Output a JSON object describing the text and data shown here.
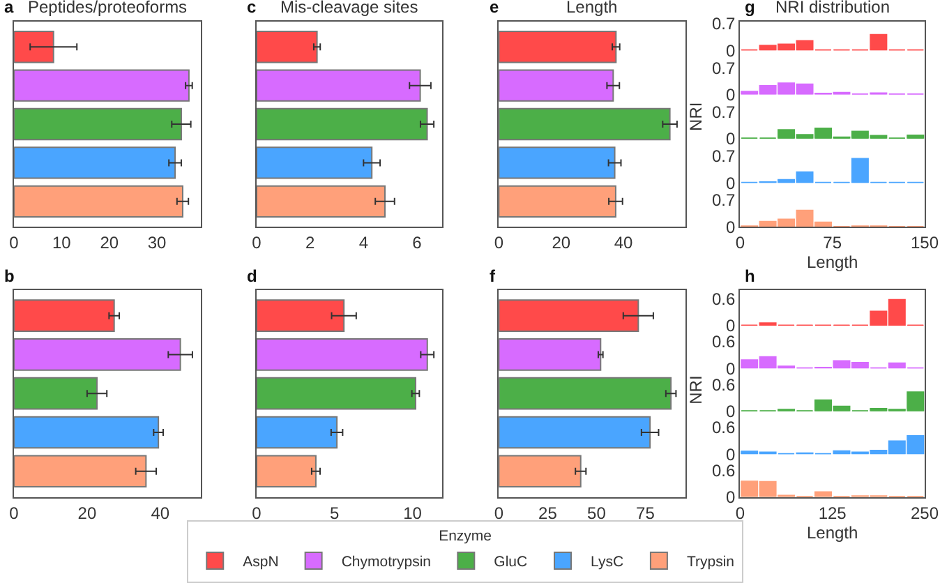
{
  "chart_data": [
    {
      "type": "bar",
      "orientation": "horizontal",
      "title": "Peptides/proteoforms",
      "annotations": [
        "a"
      ],
      "legend": "bottom",
      "legend_title": "Enzyme",
      "categories": [
        null,
        null,
        null,
        null,
        null
      ],
      "xlim": [
        0,
        39.2
      ],
      "xticks": [
        0,
        10,
        20,
        30
      ],
      "series": [
        {
          "name": "AspN",
          "color": "#ff4a4a",
          "values": [
            8.3,
            null,
            null,
            null,
            null
          ],
          "errors": [
            4.9,
            null,
            null,
            null,
            null
          ]
        },
        {
          "name": "Chymotrypsin",
          "color": "#d76bff",
          "values": [
            null,
            36.7,
            null,
            null,
            null
          ],
          "errors": [
            null,
            0.7,
            null,
            null,
            null
          ]
        },
        {
          "name": "GluC",
          "color": "#4caf48",
          "values": [
            null,
            null,
            35.1,
            null,
            null
          ],
          "errors": [
            null,
            null,
            2,
            null,
            null
          ]
        },
        {
          "name": "LysC",
          "color": "#4aa5ff",
          "values": [
            null,
            null,
            null,
            33.8,
            null
          ],
          "errors": [
            null,
            null,
            null,
            1.3,
            null
          ]
        },
        {
          "name": "Trypsin",
          "color": "#ffa07a",
          "values": [
            null,
            null,
            null,
            null,
            35.4
          ],
          "errors": [
            null,
            null,
            null,
            null,
            1.2
          ]
        }
      ]
    },
    {
      "type": "bar",
      "orientation": "horizontal",
      "title": "Mis-cleavage sites",
      "annotations": [
        "c"
      ],
      "categories": [
        null,
        null,
        null,
        null,
        null
      ],
      "xlim": [
        0,
        6.94
      ],
      "xticks": [
        0,
        2,
        4,
        6
      ],
      "series": [
        {
          "color": "#ff4a4a",
          "values": [
            2.26,
            null,
            null,
            null,
            null
          ],
          "errors": [
            0.12,
            null,
            null,
            null,
            null
          ]
        },
        {
          "color": "#d76bff",
          "values": [
            null,
            6.12,
            null,
            null,
            null
          ],
          "errors": [
            null,
            0.4,
            null,
            null,
            null
          ]
        },
        {
          "color": "#4caf48",
          "values": [
            null,
            null,
            6.38,
            null,
            null
          ],
          "errors": [
            null,
            null,
            0.25,
            null,
            null
          ]
        },
        {
          "color": "#4aa5ff",
          "values": [
            null,
            null,
            null,
            4.31,
            null
          ],
          "errors": [
            null,
            null,
            null,
            0.31,
            null
          ]
        },
        {
          "color": "#ffa07a",
          "values": [
            null,
            null,
            null,
            null,
            4.8
          ],
          "errors": [
            null,
            null,
            null,
            null,
            0.36
          ]
        }
      ]
    },
    {
      "type": "bar",
      "orientation": "horizontal",
      "title": "Length",
      "annotations": [
        "e"
      ],
      "categories": [
        null,
        null,
        null,
        null,
        null
      ],
      "xlim": [
        0,
        60
      ],
      "xticks": [
        0,
        20,
        40
      ],
      "series": [
        {
          "color": "#ff4a4a",
          "values": [
            37.6,
            null,
            null,
            null,
            null
          ],
          "errors": [
            1.2,
            null,
            null,
            null,
            null
          ]
        },
        {
          "color": "#d76bff",
          "values": [
            null,
            36.7,
            null,
            null,
            null
          ],
          "errors": [
            null,
            2,
            null,
            null,
            null
          ]
        },
        {
          "color": "#4caf48",
          "values": [
            null,
            null,
            54.9,
            null,
            null
          ],
          "errors": [
            null,
            null,
            2.3,
            null,
            null
          ]
        },
        {
          "color": "#4aa5ff",
          "values": [
            null,
            null,
            null,
            37.2,
            null
          ],
          "errors": [
            null,
            null,
            null,
            2,
            null
          ]
        },
        {
          "color": "#ffa07a",
          "values": [
            null,
            null,
            null,
            null,
            37.5
          ],
          "errors": [
            null,
            null,
            null,
            null,
            2.2
          ]
        }
      ]
    },
    {
      "type": "histogram",
      "title": "NRI distribution",
      "annotations": [
        "g"
      ],
      "tick_labels": "y",
      "bins": [
        0,
        15,
        30,
        45,
        60,
        75,
        90,
        105,
        120,
        135,
        150
      ],
      "xlim": [
        0,
        150
      ],
      "ylim": [
        0,
        0.76
      ],
      "yticks": [
        0,
        0.7
      ],
      "series": [
        {
          "color": "#ff4a4a",
          "values": [
            0,
            0.13,
            0.16,
            0.25,
            0,
            0,
            0,
            0.41,
            0,
            0
          ]
        }
      ]
    },
    {
      "type": "histogram",
      "tick_labels": "y",
      "bins": [
        0,
        15,
        30,
        45,
        60,
        75,
        90,
        105,
        120,
        135,
        150
      ],
      "xlim": [
        0,
        150
      ],
      "ylim": [
        0,
        1.155
      ],
      "yticks": [
        0,
        0.7
      ],
      "series": [
        {
          "color": "#d76bff",
          "values": [
            0.08,
            0.23,
            0.3,
            0.27,
            0.03,
            0.05,
            0,
            0.04,
            0,
            0
          ]
        }
      ]
    },
    {
      "type": "histogram",
      "ylabel": "NRI",
      "tick_labels": "y",
      "bins": [
        0,
        15,
        30,
        45,
        60,
        75,
        90,
        105,
        120,
        135,
        150
      ],
      "xlim": [
        0,
        150
      ],
      "ylim": [
        0,
        1.155
      ],
      "yticks": [
        0,
        0.7
      ],
      "series": [
        {
          "color": "#4caf48",
          "values": [
            0,
            0,
            0.23,
            0.1,
            0.27,
            0.04,
            0.19,
            0.08,
            0,
            0.09
          ]
        }
      ]
    },
    {
      "type": "histogram",
      "tick_labels": "y",
      "bins": [
        0,
        15,
        30,
        45,
        60,
        75,
        90,
        105,
        120,
        135,
        150
      ],
      "xlim": [
        0,
        150
      ],
      "ylim": [
        0,
        1.155
      ],
      "yticks": [
        0,
        0.7
      ],
      "series": [
        {
          "color": "#4aa5ff",
          "values": [
            0,
            0.02,
            0.08,
            0.28,
            0,
            0,
            0.63,
            0,
            0,
            0
          ]
        }
      ]
    },
    {
      "type": "histogram",
      "xlabel": "Length",
      "bins": [
        0,
        15,
        30,
        45,
        60,
        75,
        90,
        105,
        120,
        135,
        150
      ],
      "xlim": [
        0,
        150
      ],
      "xticks": [
        0,
        75,
        150
      ],
      "ylim": [
        0,
        1.155
      ],
      "yticks": [
        0,
        0.7
      ],
      "series": [
        {
          "color": "#ffa07a",
          "values": [
            0.02,
            0.14,
            0.2,
            0.43,
            0.12,
            0,
            0.02,
            0.02,
            0,
            0
          ]
        }
      ]
    },
    {
      "type": "bar",
      "orientation": "horizontal",
      "annotations": [
        "b"
      ],
      "categories": [
        null,
        null,
        null,
        null,
        null
      ],
      "xlim": [
        0,
        51.1
      ],
      "xticks": [
        0,
        20,
        40
      ],
      "series": [
        {
          "color": "#ff4a4a",
          "values": [
            27.4,
            null,
            null,
            null,
            null
          ],
          "errors": [
            1.4,
            null,
            null,
            null,
            null
          ]
        },
        {
          "color": "#d76bff",
          "values": [
            null,
            45.5,
            null,
            null,
            null
          ],
          "errors": [
            null,
            3.3,
            null,
            null,
            null
          ]
        },
        {
          "color": "#4caf48",
          "values": [
            null,
            null,
            22.7,
            null,
            null
          ],
          "errors": [
            null,
            null,
            2.7,
            null,
            null
          ]
        },
        {
          "color": "#4aa5ff",
          "values": [
            null,
            null,
            null,
            39.5,
            null
          ],
          "errors": [
            null,
            null,
            null,
            1.3,
            null
          ]
        },
        {
          "color": "#ffa07a",
          "values": [
            null,
            null,
            null,
            null,
            36.1
          ],
          "errors": [
            null,
            null,
            null,
            null,
            2.8
          ]
        }
      ]
    },
    {
      "type": "bar",
      "orientation": "horizontal",
      "annotations": [
        "d"
      ],
      "categories": [
        null,
        null,
        null,
        null,
        null
      ],
      "xlim": [
        0,
        11.9
      ],
      "xticks": [
        0,
        5,
        10
      ],
      "series": [
        {
          "color": "#ff4a4a",
          "values": [
            5.6,
            null,
            null,
            null,
            null
          ],
          "errors": [
            0.79,
            null,
            null,
            null,
            null
          ]
        },
        {
          "color": "#d76bff",
          "values": [
            null,
            10.95,
            null,
            null,
            null
          ],
          "errors": [
            null,
            0.42,
            null,
            null,
            null
          ]
        },
        {
          "color": "#4caf48",
          "values": [
            null,
            null,
            10.2,
            null,
            null
          ],
          "errors": [
            null,
            null,
            0.24,
            null,
            null
          ]
        },
        {
          "color": "#4aa5ff",
          "values": [
            null,
            null,
            null,
            5.15,
            null
          ],
          "errors": [
            null,
            null,
            null,
            0.37,
            null
          ]
        },
        {
          "color": "#ffa07a",
          "values": [
            null,
            null,
            null,
            null,
            3.8
          ],
          "errors": [
            null,
            null,
            null,
            null,
            0.27
          ]
        }
      ]
    },
    {
      "type": "bar",
      "orientation": "horizontal",
      "annotations": [
        "f"
      ],
      "categories": [
        null,
        null,
        null,
        null,
        null
      ],
      "xlim": [
        0,
        95.7
      ],
      "xticks": [
        0,
        25,
        50,
        75
      ],
      "series": [
        {
          "color": "#ff4a4a",
          "values": [
            71.4,
            null,
            null,
            null,
            null
          ],
          "errors": [
            7.7,
            null,
            null,
            null,
            null
          ]
        },
        {
          "color": "#d76bff",
          "values": [
            null,
            52.1,
            null,
            null,
            null
          ],
          "errors": [
            null,
            1.2,
            null,
            null,
            null
          ]
        },
        {
          "color": "#4caf48",
          "values": [
            null,
            null,
            88.1,
            null,
            null
          ],
          "errors": [
            null,
            null,
            2.6,
            null,
            null
          ]
        },
        {
          "color": "#4aa5ff",
          "values": [
            null,
            null,
            null,
            77.4,
            null
          ],
          "errors": [
            null,
            null,
            null,
            4.4,
            null
          ]
        },
        {
          "color": "#ffa07a",
          "values": [
            null,
            null,
            null,
            null,
            41.9
          ],
          "errors": [
            null,
            null,
            null,
            null,
            2.7
          ]
        }
      ]
    },
    {
      "type": "histogram",
      "annotations": [
        "h"
      ],
      "tick_labels": "y",
      "bins": [
        0,
        25,
        50,
        75,
        100,
        125,
        150,
        175,
        200,
        225,
        250
      ],
      "xlim": [
        0,
        250
      ],
      "ylim": [
        0,
        0.8
      ],
      "yticks": [
        0,
        0.6
      ],
      "series": [
        {
          "color": "#ff4a4a",
          "values": [
            0,
            0.06,
            0,
            0,
            0,
            0,
            0,
            0.32,
            0.58,
            0
          ]
        }
      ]
    },
    {
      "type": "histogram",
      "tick_labels": "y",
      "bins": [
        0,
        25,
        50,
        75,
        100,
        125,
        150,
        175,
        200,
        225,
        250
      ],
      "xlim": [
        0,
        250
      ],
      "ylim": [
        0,
        0.96
      ],
      "yticks": [
        0,
        0.6
      ],
      "series": [
        {
          "color": "#d76bff",
          "values": [
            0.19,
            0.26,
            0.05,
            0,
            0.02,
            0.17,
            0.13,
            0,
            0.12,
            0
          ]
        }
      ]
    },
    {
      "type": "histogram",
      "ylabel": "NRI",
      "tick_labels": "y",
      "bins": [
        0,
        25,
        50,
        75,
        100,
        125,
        150,
        175,
        200,
        225,
        250
      ],
      "xlim": [
        0,
        250
      ],
      "ylim": [
        0,
        0.96
      ],
      "yticks": [
        0,
        0.6
      ],
      "series": [
        {
          "color": "#4caf48",
          "values": [
            0,
            0,
            0.04,
            0,
            0.25,
            0.11,
            0,
            0.06,
            0.04,
            0.43
          ]
        }
      ]
    },
    {
      "type": "histogram",
      "tick_labels": "y",
      "bins": [
        0,
        25,
        50,
        75,
        100,
        125,
        150,
        175,
        200,
        225,
        250
      ],
      "xlim": [
        0,
        250
      ],
      "ylim": [
        0,
        0.96
      ],
      "yticks": [
        0,
        0.6
      ],
      "series": [
        {
          "color": "#4aa5ff",
          "values": [
            0.06,
            0.04,
            0,
            0.02,
            0,
            0.07,
            0.04,
            0.08,
            0.29,
            0.41
          ]
        }
      ]
    },
    {
      "type": "histogram",
      "xlabel": "Length",
      "bins": [
        0,
        25,
        50,
        75,
        100,
        125,
        150,
        175,
        200,
        225,
        250
      ],
      "xlim": [
        0,
        250
      ],
      "xticks": [
        0,
        125,
        250
      ],
      "ylim": [
        0,
        0.96
      ],
      "yticks": [
        0,
        0.6
      ],
      "series": [
        {
          "color": "#ffa07a",
          "values": [
            0.35,
            0.34,
            0.03,
            0,
            0.11,
            0,
            0.02,
            0.02,
            0,
            0
          ]
        }
      ]
    }
  ]
}
